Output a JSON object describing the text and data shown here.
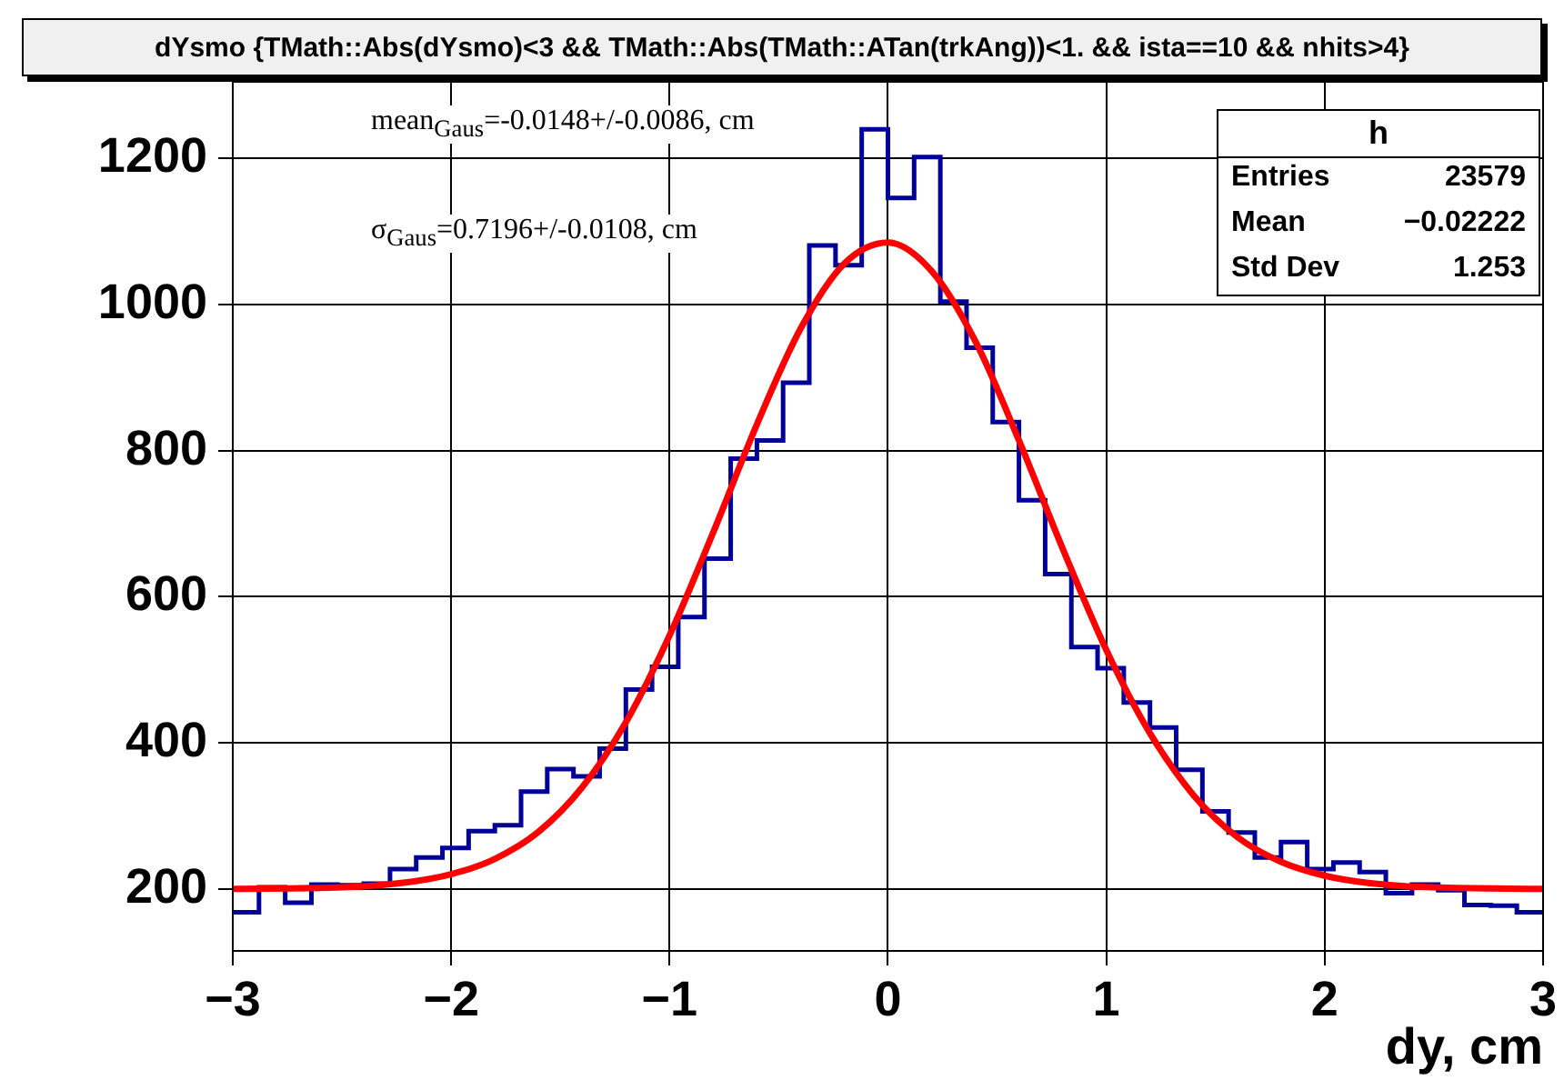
{
  "chart_data": {
    "type": "histogram",
    "title": "dYsmo {TMath::Abs(dYsmo)<3 && TMath::Abs(TMath::ATan(trkAng))<1. && ista==10 && nhits>4}",
    "xlabel": "dy, cm",
    "bins": [
      -3,
      -2.88,
      -2.76,
      -2.64,
      -2.52,
      -2.4,
      -2.28,
      -2.16,
      -2.04,
      -1.92,
      -1.8,
      -1.68,
      -1.56,
      -1.44,
      -1.32,
      -1.2,
      -1.08,
      -0.96,
      -0.84,
      -0.72,
      -0.6,
      -0.48,
      -0.36,
      -0.24,
      -0.12,
      0,
      0.12,
      0.24,
      0.36,
      0.48,
      0.6,
      0.72,
      0.84,
      0.96,
      1.08,
      1.2,
      1.32,
      1.44,
      1.56,
      1.68,
      1.8,
      1.92,
      2.04,
      2.16,
      2.28,
      2.4,
      2.52,
      2.64,
      2.76,
      2.88,
      3
    ],
    "series": [
      {
        "color": "#000099",
        "values": [
          168,
          202,
          181,
          206,
          205,
          207,
          227,
          243,
          256,
          279,
          287,
          333,
          364,
          354,
          392,
          473,
          504,
          572,
          652,
          789,
          814,
          893,
          1081,
          1054,
          1240,
          1146,
          1202,
          1004,
          941,
          839,
          732,
          631,
          531,
          502,
          455,
          421,
          363,
          306,
          277,
          243,
          264,
          227,
          236,
          223,
          194,
          206,
          198,
          178,
          177,
          168
        ]
      },
      {
        "type": "line",
        "color": "#ff0000",
        "x": [
          -3,
          -2.5,
          -2.2,
          -2,
          -1.8,
          -1.6,
          -1.4,
          -1.2,
          -1,
          -0.8,
          -0.6,
          -0.4,
          -0.2,
          0,
          0.2,
          0.4,
          0.6,
          0.8,
          1,
          1.2,
          1.4,
          1.6,
          1.8,
          2,
          2.2,
          2.5,
          3
        ],
        "values": [
          200,
          202,
          209,
          220,
          241,
          278,
          339,
          428,
          547,
          688,
          836,
          967,
          1056,
          1085,
          1046,
          950,
          814,
          666,
          527,
          413,
          328,
          271,
          237,
          218,
          208,
          202,
          200
        ]
      }
    ],
    "xlim": [
      -3,
      3
    ],
    "xticks": [
      {
        "value": -3,
        "label": "−3"
      },
      {
        "value": -2,
        "label": "−2"
      },
      {
        "value": -1,
        "label": "−1"
      },
      0,
      1,
      2,
      3
    ],
    "ylim": [
      115,
      1305
    ],
    "yticks": [
      200,
      400,
      600,
      800,
      1000,
      1200
    ],
    "grid": true,
    "legend": false,
    "marker": "none",
    "line_style": "solid",
    "annotations": [
      "mean$_{Gaus}$=-0.0148+/-0.0086, cm",
      "σ$_{Gaus}$=0.7196+/-0.0108, cm",
      "h",
      "Entries",
      "23579",
      "Mean",
      "−0.02222",
      "Std Dev",
      "1.253"
    ]
  }
}
